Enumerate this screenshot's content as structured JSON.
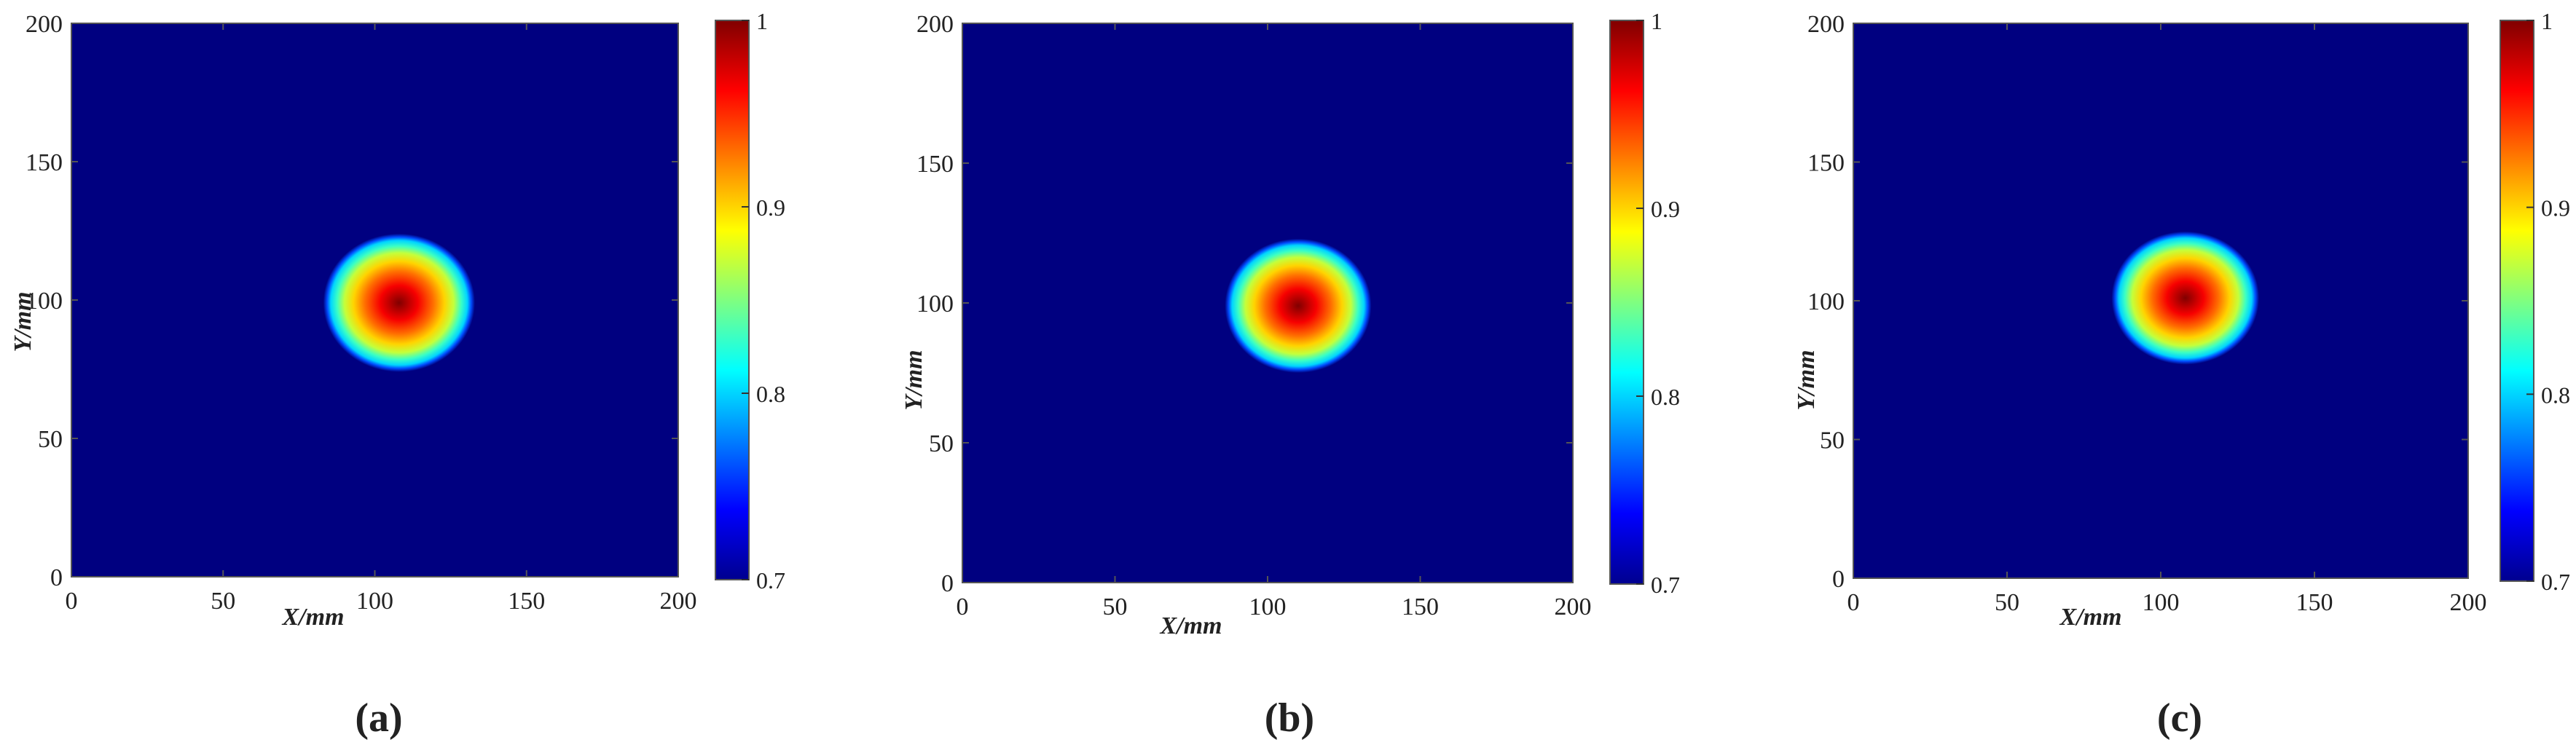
{
  "chart_data": [
    {
      "type": "heatmap",
      "panel_label": "(a)",
      "xlabel": "X/mm",
      "ylabel": "Y/mm",
      "xlim": [
        0,
        200
      ],
      "ylim": [
        0,
        200
      ],
      "x_ticks": [
        0,
        50,
        100,
        150,
        200
      ],
      "y_ticks": [
        0,
        50,
        100,
        150,
        200
      ],
      "colormap": "jet",
      "colorbar_range": [
        0.7,
        1.0
      ],
      "colorbar_ticks": [
        0.7,
        0.8,
        0.9,
        1
      ],
      "colorbar_tick_labels": [
        "0.7",
        "0.8",
        "0.9",
        "1"
      ],
      "background_value": 0.7,
      "hotspot": {
        "center_x": 108,
        "center_y": 99,
        "radius": 25,
        "peak_value": 1.0
      }
    },
    {
      "type": "heatmap",
      "panel_label": "(b)",
      "xlabel": "X/mm",
      "ylabel": "Y/mm",
      "xlim": [
        0,
        200
      ],
      "ylim": [
        0,
        200
      ],
      "x_ticks": [
        0,
        50,
        100,
        150,
        200
      ],
      "y_ticks": [
        0,
        50,
        100,
        150,
        200
      ],
      "colormap": "jet",
      "colorbar_range": [
        0.7,
        1.0
      ],
      "colorbar_ticks": [
        0.7,
        0.8,
        0.9,
        1
      ],
      "colorbar_tick_labels": [
        "0.7",
        "0.8",
        "0.9",
        "1"
      ],
      "background_value": 0.7,
      "hotspot": {
        "center_x": 110,
        "center_y": 99,
        "radius": 24,
        "peak_value": 1.0
      }
    },
    {
      "type": "heatmap",
      "panel_label": "(c)",
      "xlabel": "X/mm",
      "ylabel": "Y/mm",
      "xlim": [
        0,
        200
      ],
      "ylim": [
        0,
        200
      ],
      "x_ticks": [
        0,
        50,
        100,
        150,
        200
      ],
      "y_ticks": [
        0,
        50,
        100,
        150,
        200
      ],
      "colormap": "jet",
      "colorbar_range": [
        0.7,
        1.0
      ],
      "colorbar_ticks": [
        0.7,
        0.8,
        0.9,
        1
      ],
      "colorbar_tick_labels": [
        "0.7",
        "0.8",
        "0.9",
        "1"
      ],
      "background_value": 0.7,
      "hotspot": {
        "center_x": 108,
        "center_y": 101,
        "radius": 24,
        "peak_value": 1.0
      }
    }
  ]
}
